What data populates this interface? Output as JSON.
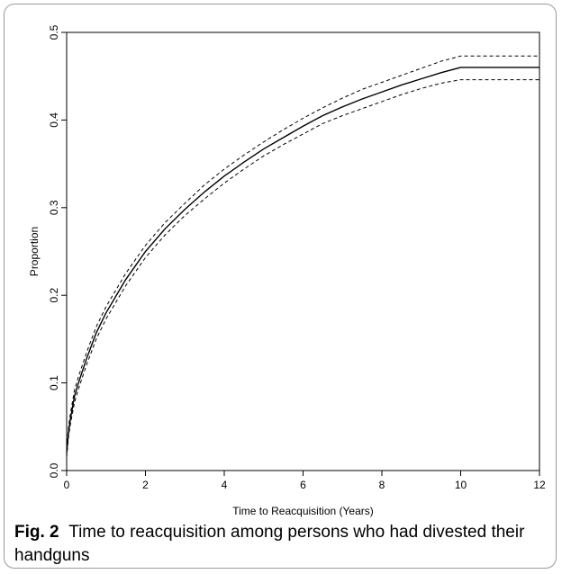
{
  "figure": {
    "caption_label": "Fig. 2",
    "caption_text": "Time to reacquisition among persons who had divested their handguns"
  },
  "chart_data": {
    "type": "line",
    "title": "",
    "xlabel": "Time to Reacquisition (Years)",
    "ylabel": "Proportion",
    "xlim": [
      0,
      12
    ],
    "ylim": [
      0,
      0.5
    ],
    "xticks": [
      0,
      2,
      4,
      6,
      8,
      10,
      12
    ],
    "yticks": [
      "0.0",
      "0.1",
      "0.2",
      "0.3",
      "0.4",
      "0.5"
    ],
    "grid": false,
    "legend": "none",
    "series": [
      {
        "role": "estimate",
        "style": "solid",
        "x": [
          0,
          0.05,
          0.1,
          0.2,
          0.3,
          0.5,
          0.75,
          1,
          1.5,
          2,
          2.5,
          3,
          3.5,
          4,
          4.5,
          5,
          5.5,
          6,
          6.5,
          7,
          7.5,
          8,
          8.5,
          9,
          9.5,
          10,
          10.5,
          11,
          12
        ],
        "y": [
          0.02,
          0.045,
          0.06,
          0.085,
          0.1,
          0.127,
          0.157,
          0.18,
          0.218,
          0.25,
          0.276,
          0.298,
          0.318,
          0.336,
          0.352,
          0.367,
          0.38,
          0.393,
          0.405,
          0.415,
          0.424,
          0.432,
          0.44,
          0.447,
          0.454,
          0.46,
          0.46,
          0.46,
          0.46
        ]
      },
      {
        "role": "upper-bound",
        "style": "dashed",
        "x": [
          0,
          0.05,
          0.1,
          0.2,
          0.3,
          0.5,
          0.75,
          1,
          1.5,
          2,
          2.5,
          3,
          3.5,
          4,
          4.5,
          5,
          5.5,
          6,
          6.5,
          7,
          7.5,
          8,
          8.5,
          9,
          9.5,
          10,
          10.5,
          11,
          12
        ],
        "y": [
          0.025,
          0.05,
          0.066,
          0.092,
          0.107,
          0.134,
          0.164,
          0.187,
          0.225,
          0.257,
          0.283,
          0.305,
          0.326,
          0.344,
          0.36,
          0.375,
          0.389,
          0.402,
          0.414,
          0.425,
          0.435,
          0.443,
          0.451,
          0.459,
          0.467,
          0.473,
          0.473,
          0.473,
          0.473
        ]
      },
      {
        "role": "lower-bound",
        "style": "dashed",
        "x": [
          0,
          0.05,
          0.1,
          0.2,
          0.3,
          0.5,
          0.75,
          1,
          1.5,
          2,
          2.5,
          3,
          3.5,
          4,
          4.5,
          5,
          5.5,
          6,
          6.5,
          7,
          7.5,
          8,
          8.5,
          9,
          9.5,
          10,
          10.5,
          11,
          12
        ],
        "y": [
          0.015,
          0.04,
          0.054,
          0.078,
          0.093,
          0.12,
          0.15,
          0.173,
          0.211,
          0.243,
          0.269,
          0.291,
          0.31,
          0.328,
          0.344,
          0.359,
          0.372,
          0.384,
          0.396,
          0.405,
          0.413,
          0.421,
          0.429,
          0.436,
          0.442,
          0.446,
          0.446,
          0.446,
          0.446
        ]
      }
    ]
  }
}
